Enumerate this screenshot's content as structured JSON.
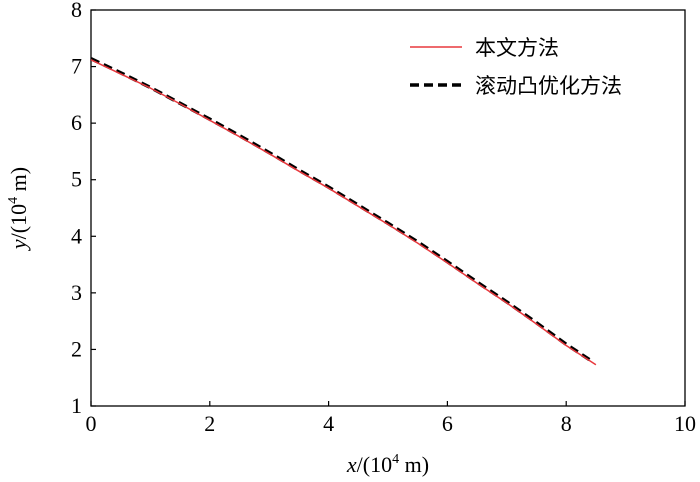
{
  "chart_data": {
    "type": "line",
    "title": "",
    "xlabel": {
      "var": "x",
      "unit_prefix": "/(10",
      "exp": "4",
      "unit_suffix": " m)"
    },
    "ylabel": {
      "var": "y",
      "unit_prefix": "/(10",
      "exp": "4",
      "unit_suffix": " m)"
    },
    "xlim": [
      0,
      10
    ],
    "ylim": [
      1,
      8
    ],
    "xticks": [
      "0",
      "2",
      "4",
      "6",
      "8",
      "10"
    ],
    "yticks": [
      "1",
      "2",
      "3",
      "4",
      "5",
      "6",
      "7",
      "8"
    ],
    "grid": false,
    "legend_position": "top-right",
    "series": [
      {
        "name": "本文方法",
        "color": "#e8383d",
        "style": "solid",
        "x": [
          0,
          0.5,
          1,
          1.5,
          2,
          2.5,
          3,
          3.5,
          4,
          4.5,
          5,
          5.5,
          6,
          6.5,
          7,
          7.5,
          8,
          8.5
        ],
        "y": [
          7.12,
          6.87,
          6.62,
          6.34,
          6.05,
          5.76,
          5.46,
          5.15,
          4.85,
          4.53,
          4.21,
          3.88,
          3.53,
          3.17,
          2.82,
          2.45,
          2.07,
          1.73
        ]
      },
      {
        "name": "滚动凸优化方法",
        "color": "#000000",
        "style": "dashed",
        "x": [
          0,
          0.5,
          1,
          1.5,
          2,
          2.5,
          3,
          3.5,
          4,
          4.5,
          5,
          5.5,
          6,
          6.5,
          7,
          7.5,
          8,
          8.45
        ],
        "y": [
          7.14,
          6.89,
          6.63,
          6.35,
          6.07,
          5.78,
          5.48,
          5.17,
          4.87,
          4.55,
          4.23,
          3.9,
          3.55,
          3.19,
          2.84,
          2.47,
          2.09,
          1.78
        ]
      }
    ]
  }
}
